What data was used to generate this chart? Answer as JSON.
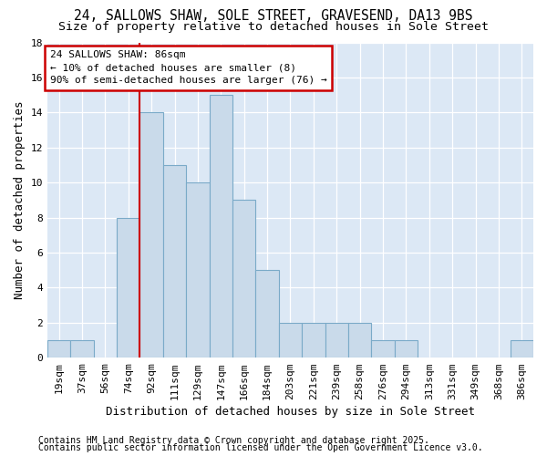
{
  "title_line1": "24, SALLOWS SHAW, SOLE STREET, GRAVESEND, DA13 9BS",
  "title_line2": "Size of property relative to detached houses in Sole Street",
  "xlabel": "Distribution of detached houses by size in Sole Street",
  "ylabel": "Number of detached properties",
  "bar_color": "#c9daea",
  "bar_edge_color": "#7aaac8",
  "bg_color": "#dce8f5",
  "fig_bg_color": "#ffffff",
  "categories": [
    "19sqm",
    "37sqm",
    "56sqm",
    "74sqm",
    "92sqm",
    "111sqm",
    "129sqm",
    "147sqm",
    "166sqm",
    "184sqm",
    "203sqm",
    "221sqm",
    "239sqm",
    "258sqm",
    "276sqm",
    "294sqm",
    "313sqm",
    "331sqm",
    "349sqm",
    "368sqm",
    "386sqm"
  ],
  "values": [
    1,
    1,
    0,
    8,
    14,
    11,
    10,
    15,
    9,
    5,
    2,
    2,
    2,
    2,
    1,
    1,
    0,
    0,
    0,
    0,
    1
  ],
  "ylim": [
    0,
    18
  ],
  "yticks": [
    0,
    2,
    4,
    6,
    8,
    10,
    12,
    14,
    16,
    18
  ],
  "vline_x_index": 4,
  "vline_color": "#cc0000",
  "annotation_text": "24 SALLOWS SHAW: 86sqm\n← 10% of detached houses are smaller (8)\n90% of semi-detached houses are larger (76) →",
  "annotation_box_color": "#ffffff",
  "annotation_box_edge": "#cc0000",
  "footer_line1": "Contains HM Land Registry data © Crown copyright and database right 2025.",
  "footer_line2": "Contains public sector information licensed under the Open Government Licence v3.0.",
  "title_fontsize": 10.5,
  "subtitle_fontsize": 9.5,
  "tick_fontsize": 8,
  "ylabel_fontsize": 9,
  "xlabel_fontsize": 9,
  "annotation_fontsize": 8,
  "footer_fontsize": 7
}
